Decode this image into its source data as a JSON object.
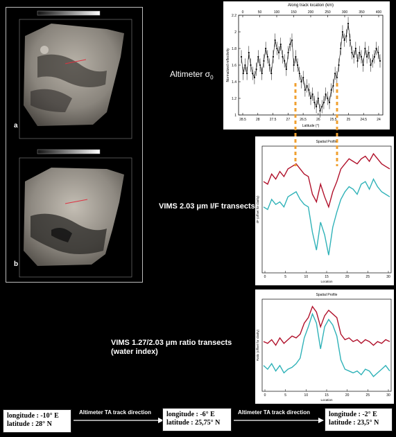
{
  "left_panel": {
    "map_a_label": "a",
    "map_b_label": "b"
  },
  "altimeter": {
    "label_main": "Altimeter σ",
    "label_sub": "0"
  },
  "vims_203": {
    "label": "VIMS 2.03 μm I/F transects"
  },
  "vims_ratio": {
    "label_line1": "VIMS 1.27/2.03 μm ratio transects",
    "label_line2": "(water index)"
  },
  "bottom": {
    "box1": {
      "line1": "longitude : -10° E",
      "line2": "latitude : 28° N"
    },
    "box2": {
      "line1": "longitude : -6° E",
      "line2": "latitude : 25,75° N"
    },
    "box3": {
      "line1": "longitude : -2° E",
      "line2": "latitude : 23,5° N"
    },
    "arrow1_label": "Altimeter TA track direction",
    "arrow2_label": "Altimeter TA track direction"
  },
  "colors": {
    "red_series": "#b0102a",
    "cyan_series": "#2fb2b8",
    "guide": "#f0a030"
  },
  "chart_data": [
    {
      "type": "line",
      "title": "Along track location (km)",
      "xlabel": "Latitude (°)",
      "ylabel": "Normalized reflectivity",
      "top_ticks": [
        "0",
        "50",
        "100",
        "150",
        "200",
        "250",
        "300",
        "350",
        "400"
      ],
      "bottom_ticks": [
        "28.5",
        "28",
        "27.5",
        "27",
        "26.5",
        "26",
        "25.5",
        "25",
        "24.5",
        "24"
      ],
      "y_ticks": [
        "1",
        "1.2",
        "1.4",
        "1.6",
        "1.8",
        "2",
        "2.2"
      ],
      "ylim": [
        1,
        2.2
      ],
      "values": [
        1.7,
        1.5,
        1.6,
        1.5,
        1.75,
        1.6,
        1.5,
        1.45,
        1.55,
        1.7,
        1.6,
        1.5,
        1.65,
        1.8,
        1.7,
        1.6,
        1.5,
        1.7,
        1.9,
        1.8,
        1.75,
        1.85,
        1.7,
        1.65,
        1.55,
        1.75,
        1.85,
        1.9,
        1.6,
        1.7,
        1.6,
        1.5,
        1.4,
        1.45,
        1.3,
        1.35,
        1.3,
        1.2,
        1.25,
        1.15,
        1.1,
        1.2,
        1.05,
        1.1,
        1.15,
        1.25,
        1.2,
        1.15,
        1.3,
        1.35,
        1.5,
        1.45,
        1.6,
        1.8,
        2.0,
        1.9,
        1.95,
        2.1,
        1.9,
        1.75,
        1.7,
        1.8,
        1.65,
        1.75,
        1.7,
        1.6,
        1.8,
        1.7,
        1.75,
        1.6,
        1.65,
        1.7,
        1.8,
        1.75,
        1.65
      ]
    },
    {
      "type": "line",
      "title": "Spatial Profile",
      "xlabel": "Location",
      "ylabel": "I/F (offset for clarity)",
      "x_ticks": [
        "0",
        "5",
        "10",
        "15",
        "20",
        "25",
        "30"
      ],
      "series": [
        {
          "values": [
            0.72,
            0.7,
            0.78,
            0.74,
            0.8,
            0.76,
            0.82,
            0.84,
            0.86,
            0.82,
            0.78,
            0.76,
            0.62,
            0.56,
            0.7,
            0.6,
            0.52,
            0.64,
            0.72,
            0.82,
            0.86,
            0.9,
            0.88,
            0.86,
            0.9,
            0.92,
            0.88,
            0.94,
            0.9,
            0.86,
            0.84,
            0.82
          ]
        },
        {
          "values": [
            0.52,
            0.5,
            0.58,
            0.54,
            0.56,
            0.52,
            0.6,
            0.62,
            0.64,
            0.58,
            0.54,
            0.52,
            0.32,
            0.18,
            0.4,
            0.3,
            0.14,
            0.36,
            0.48,
            0.58,
            0.64,
            0.68,
            0.66,
            0.62,
            0.7,
            0.72,
            0.66,
            0.74,
            0.68,
            0.64,
            0.62,
            0.6
          ]
        }
      ]
    },
    {
      "type": "line",
      "title": "Spatial Profile",
      "xlabel": "Location",
      "ylabel": "Ratio (offset for clarity)",
      "x_ticks": [
        "0",
        "5",
        "10",
        "15",
        "20",
        "25",
        "30"
      ],
      "series": [
        {
          "values": [
            0.54,
            0.52,
            0.56,
            0.5,
            0.58,
            0.52,
            0.56,
            0.6,
            0.58,
            0.62,
            0.74,
            0.8,
            0.92,
            0.86,
            0.7,
            0.82,
            0.88,
            0.84,
            0.8,
            0.62,
            0.56,
            0.58,
            0.54,
            0.56,
            0.52,
            0.56,
            0.54,
            0.5,
            0.54,
            0.52,
            0.56,
            0.54
          ]
        },
        {
          "values": [
            0.28,
            0.24,
            0.3,
            0.22,
            0.28,
            0.2,
            0.24,
            0.26,
            0.3,
            0.36,
            0.58,
            0.7,
            0.84,
            0.74,
            0.46,
            0.7,
            0.78,
            0.72,
            0.6,
            0.34,
            0.24,
            0.22,
            0.2,
            0.22,
            0.18,
            0.24,
            0.22,
            0.16,
            0.2,
            0.24,
            0.28,
            0.22
          ]
        }
      ]
    }
  ]
}
